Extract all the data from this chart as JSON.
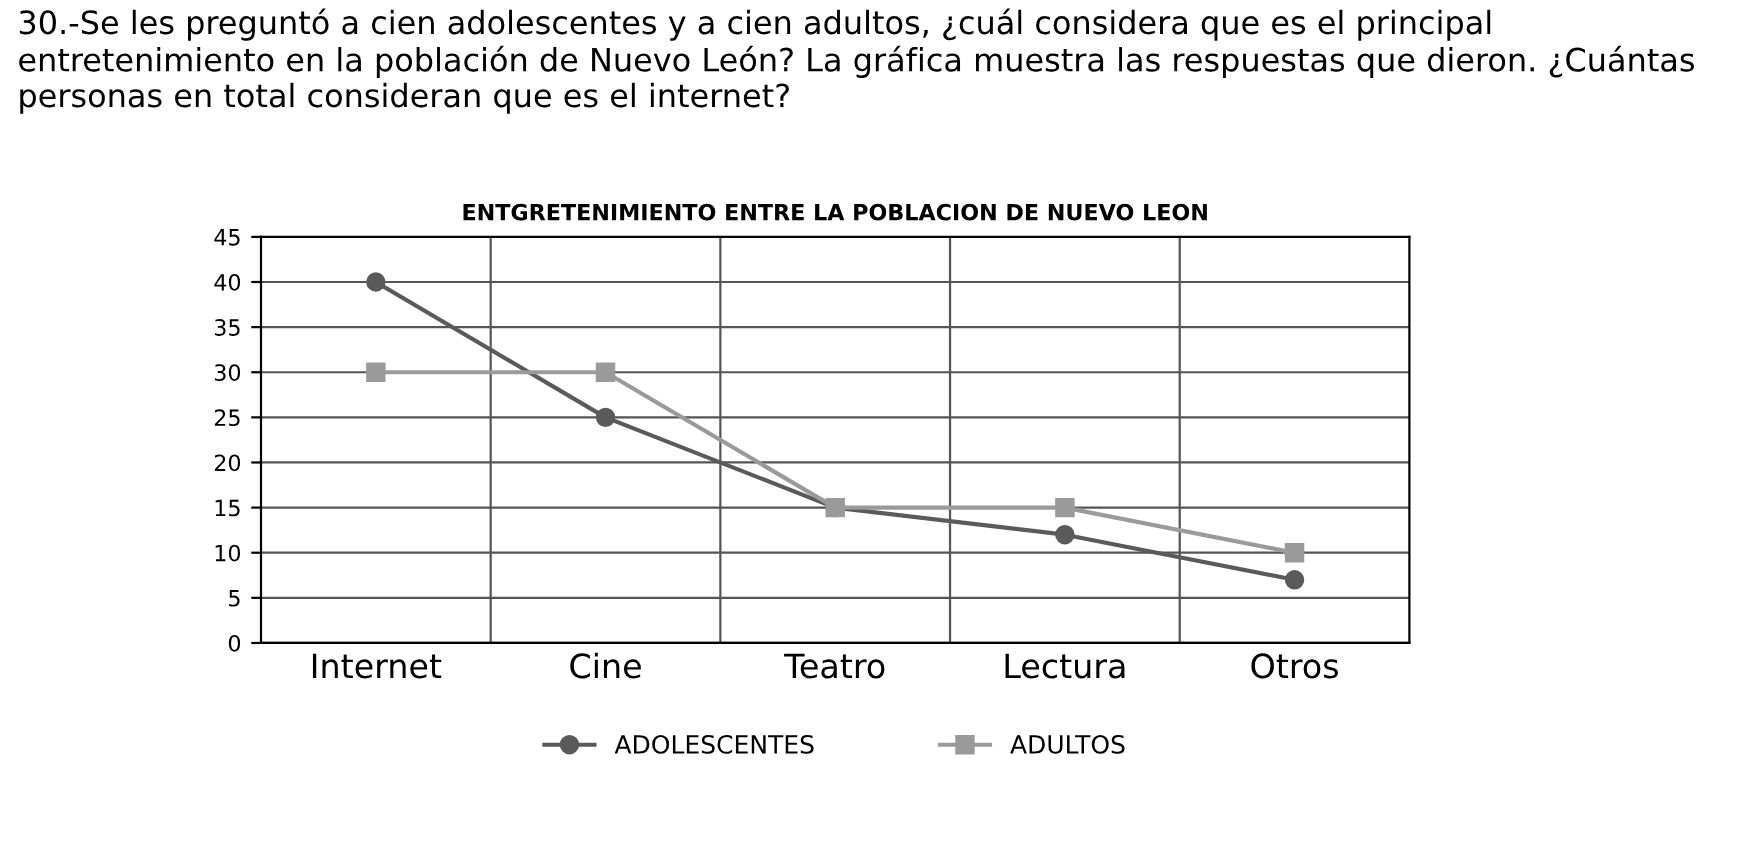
{
  "chart_data": {
    "type": "line",
    "annotations": [
      "30.-Se les preguntó a cien adolescentes y a cien adultos, ¿cuál considera que es el principal entretenimiento en la población de Nuevo León? La gráfica muestra las respuestas que dieron. ¿Cuántas personas en total consideran que es el internet?"
    ],
    "title": "ENTGRETENIMIENTO ENTRE LA POBLACION DE NUEVO LEON",
    "categories": [
      "Internet",
      "Cine",
      "Teatro",
      "Lectura",
      "Otros"
    ],
    "series": [
      {
        "name": "ADOLESCENTES",
        "color": "#5a5a5a",
        "marker": "circle",
        "values": [
          40,
          25,
          15,
          12,
          7
        ]
      },
      {
        "name": "ADULTOS",
        "color": "#9a9a9a",
        "marker": "square",
        "values": [
          30,
          30,
          15,
          15,
          10
        ]
      }
    ],
    "ylim": [
      0,
      45
    ],
    "yticks": [
      0,
      5,
      10,
      15,
      20,
      25,
      30,
      35,
      40,
      45
    ],
    "grid": true,
    "legend": "bottom"
  }
}
